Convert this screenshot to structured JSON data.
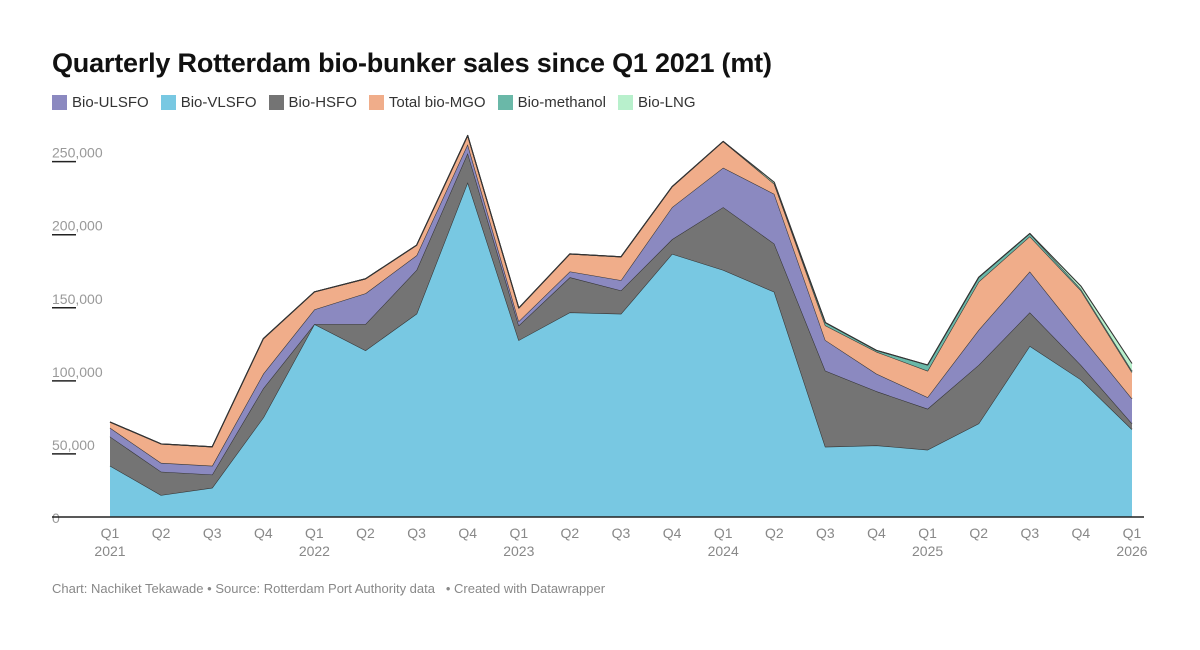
{
  "title": "Quarterly Rotterdam bio-bunker sales since Q1 2021 (mt)",
  "footer": {
    "credit": "Chart: Nachiket Tekawade",
    "source": "Source: Rotterdam Port Authority data",
    "tool": "Created with Datawrapper"
  },
  "chart_data": {
    "type": "area",
    "stacked": true,
    "title": "Quarterly Rotterdam bio-bunker sales since Q1 2021 (mt)",
    "x": [
      "Q1 2021",
      "Q2 2021",
      "Q3 2021",
      "Q4 2021",
      "Q1 2022",
      "Q2 2022",
      "Q3 2022",
      "Q4 2022",
      "Q1 2023",
      "Q2 2023",
      "Q3 2023",
      "Q4 2023",
      "Q1 2024",
      "Q2 2024",
      "Q3 2024",
      "Q4 2024",
      "Q1 2025",
      "Q2 2025",
      "Q3 2025",
      "Q4 2025",
      "Q1 2026"
    ],
    "x_tick_labels": [
      {
        "quarter": "Q1",
        "year": "2021"
      },
      {
        "quarter": "Q2",
        "year": ""
      },
      {
        "quarter": "Q3",
        "year": ""
      },
      {
        "quarter": "Q4",
        "year": ""
      },
      {
        "quarter": "Q1",
        "year": "2022"
      },
      {
        "quarter": "Q2",
        "year": ""
      },
      {
        "quarter": "Q3",
        "year": ""
      },
      {
        "quarter": "Q4",
        "year": ""
      },
      {
        "quarter": "Q1",
        "year": "2023"
      },
      {
        "quarter": "Q2",
        "year": ""
      },
      {
        "quarter": "Q3",
        "year": ""
      },
      {
        "quarter": "Q4",
        "year": ""
      },
      {
        "quarter": "Q1",
        "year": "2024"
      },
      {
        "quarter": "Q2",
        "year": ""
      },
      {
        "quarter": "Q3",
        "year": ""
      },
      {
        "quarter": "Q4",
        "year": ""
      },
      {
        "quarter": "Q1",
        "year": "2025"
      },
      {
        "quarter": "Q2",
        "year": ""
      },
      {
        "quarter": "Q3",
        "year": ""
      },
      {
        "quarter": "Q4",
        "year": ""
      },
      {
        "quarter": "Q1",
        "year": "2026"
      }
    ],
    "ylim": [
      0,
      260000
    ],
    "yticks": [
      0,
      50000,
      100000,
      150000,
      200000,
      250000
    ],
    "ytick_labels": [
      "0",
      "50,000",
      "100,000",
      "150,000",
      "200,000",
      "250,000"
    ],
    "legend_position": "top-left",
    "series": [
      {
        "name": "Bio-VLSFO",
        "color": "#78c8e2",
        "values": [
          35000,
          15000,
          20000,
          68000,
          132000,
          114000,
          139000,
          229000,
          121000,
          140000,
          139000,
          180000,
          169000,
          154000,
          48000,
          49000,
          46000,
          64000,
          117000,
          94000,
          60000
        ]
      },
      {
        "name": "Bio-HSFO",
        "color": "#747474",
        "values": [
          20000,
          16000,
          9000,
          20000,
          0,
          18000,
          30000,
          20000,
          10000,
          24000,
          16000,
          10000,
          43000,
          33000,
          52000,
          37000,
          28000,
          40000,
          23000,
          10000,
          4000
        ]
      },
      {
        "name": "Bio-ULSFO",
        "color": "#8b89c0",
        "values": [
          6000,
          6000,
          6000,
          10000,
          10000,
          21000,
          10000,
          6000,
          3000,
          4000,
          7000,
          22000,
          27000,
          34000,
          21000,
          12000,
          8000,
          24000,
          28000,
          20000,
          17000
        ]
      },
      {
        "name": "Total bio-MGO",
        "color": "#f0ad8a",
        "values": [
          4000,
          13000,
          13000,
          24000,
          12000,
          10000,
          7000,
          6000,
          9000,
          12000,
          16000,
          14000,
          18000,
          7000,
          10000,
          15000,
          18000,
          33000,
          24000,
          31000,
          18000
        ]
      },
      {
        "name": "Bio-methanol",
        "color": "#6ab8a8",
        "values": [
          0,
          0,
          0,
          0,
          0,
          0,
          0,
          0,
          0,
          0,
          0,
          0,
          0,
          0,
          2000,
          1000,
          4000,
          3000,
          2000,
          1000,
          1000
        ]
      },
      {
        "name": "Bio-LNG",
        "color": "#b8f0cc",
        "values": [
          0,
          0,
          0,
          0,
          0,
          0,
          0,
          0,
          0,
          0,
          0,
          0,
          0,
          1000,
          0,
          0,
          0,
          0,
          0,
          2000,
          5000
        ]
      }
    ]
  }
}
